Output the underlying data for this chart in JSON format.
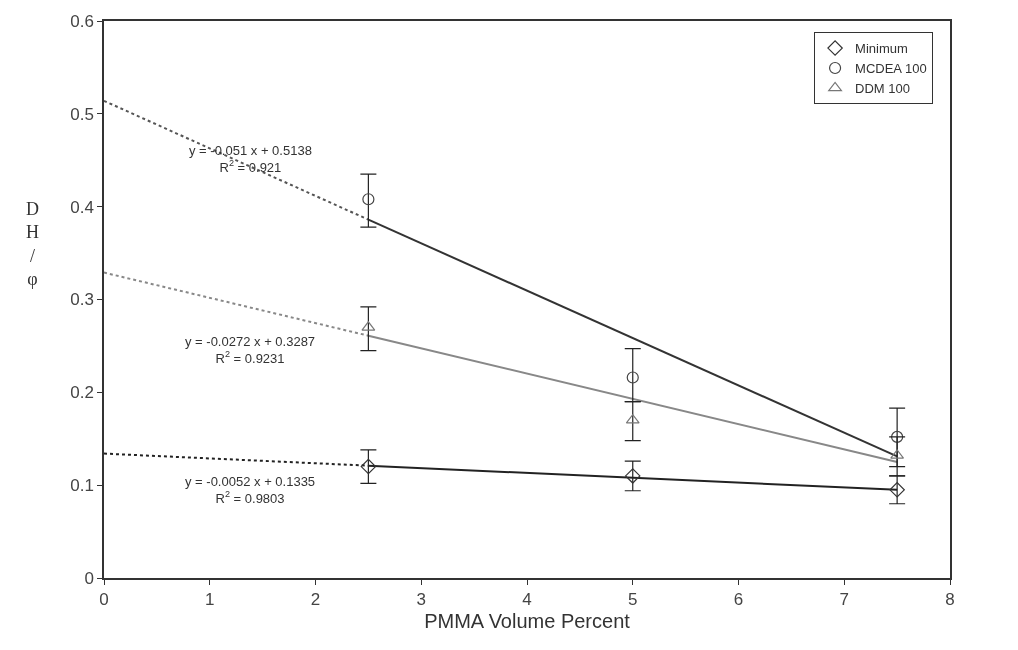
{
  "chart_data": {
    "type": "scatter",
    "xlabel": "PMMA Volume Percent",
    "ylabel": "DH/φ",
    "x": [
      2.5,
      5,
      7.5
    ],
    "series": [
      {
        "name": "Minimum",
        "color": "#333333",
        "marker": "diamond",
        "values": [
          0.12,
          0.11,
          0.095
        ],
        "errors": [
          [
            0.102,
            0.138
          ],
          [
            0.094,
            0.126
          ],
          [
            0.08,
            0.11
          ]
        ]
      },
      {
        "name": "MCDEA 100",
        "color": "#444444",
        "marker": "circle",
        "values": [
          0.408,
          0.216,
          0.152
        ],
        "errors": [
          [
            0.378,
            0.435
          ],
          [
            0.19,
            0.247
          ],
          [
            0.12,
            0.183
          ]
        ]
      },
      {
        "name": "DDM 100",
        "color": "#777777",
        "marker": "triangle",
        "values": [
          0.27,
          0.17,
          0.132
        ],
        "errors": [
          [
            0.245,
            0.292
          ],
          [
            0.148,
            0.19
          ],
          [
            0.11,
            0.152
          ]
        ]
      },
      {
        "type": "line",
        "color": "#555555",
        "line_style": "dotted",
        "x": [
          0,
          2.5
        ],
        "values": [
          0.514,
          0.386
        ]
      },
      {
        "type": "line",
        "color": "#333333",
        "line_style": "solid",
        "x": [
          2.5,
          7.5
        ],
        "values": [
          0.386,
          0.131
        ]
      },
      {
        "type": "line",
        "color": "#888888",
        "line_style": "dotted",
        "x": [
          0,
          2.5
        ],
        "values": [
          0.329,
          0.261
        ]
      },
      {
        "type": "line",
        "color": "#888888",
        "line_style": "solid",
        "x": [
          2.5,
          7.5
        ],
        "values": [
          0.261,
          0.125
        ]
      },
      {
        "type": "line",
        "color": "#222222",
        "line_style": "dotted",
        "x": [
          0,
          2.5
        ],
        "values": [
          0.134,
          0.121
        ]
      },
      {
        "type": "line",
        "color": "#222222",
        "line_style": "solid",
        "x": [
          2.5,
          7.5
        ],
        "values": [
          0.121,
          0.095
        ]
      }
    ],
    "annotations": [
      "y = -0.051 x + 0.5138\nR$^{2}$ = 0.921",
      "y = -0.0272 x + 0.3287\nR$^{2}$ = 0.9231",
      "y = -0.0052 x + 0.1335\nR$^{2}$ = 0.9803"
    ],
    "xlim": [
      0,
      8
    ],
    "xticks": [
      0,
      1,
      2,
      3,
      4,
      5,
      6,
      7,
      8
    ],
    "ylim": [
      0,
      0.6
    ],
    "yticks": [
      0,
      0.1,
      0.2,
      0.3,
      0.4,
      0.5,
      0.6
    ],
    "legend": "top right"
  }
}
